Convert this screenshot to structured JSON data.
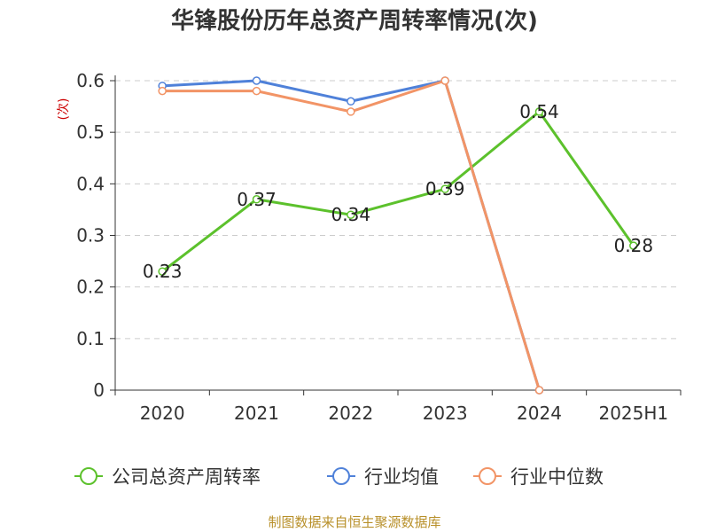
{
  "chart_data": {
    "type": "line",
    "title": "华锋股份历年总资产周转率情况(次)",
    "ylabel": "(次)",
    "xlabel": "",
    "categories": [
      "2020",
      "2021",
      "2022",
      "2023",
      "2024",
      "2025H1"
    ],
    "ylim": [
      0,
      0.6
    ],
    "yticks": [
      0,
      0.1,
      0.2,
      0.3,
      0.4,
      0.5,
      0.6
    ],
    "ytick_labels": [
      "0",
      "0.1",
      "0.2",
      "0.3",
      "0.4",
      "0.5",
      "0.6"
    ],
    "grid": true,
    "legend_position": "bottom",
    "series": [
      {
        "name": "公司总资产周转率",
        "color": "#5cc12c",
        "values": [
          0.23,
          0.37,
          0.34,
          0.39,
          0.54,
          0.28
        ],
        "labels": [
          "0.23",
          "0.37",
          "0.34",
          "0.39",
          "0.54",
          "0.28"
        ]
      },
      {
        "name": "行业均值",
        "color": "#4f81d9",
        "values": [
          0.59,
          0.6,
          0.56,
          0.6,
          0.0,
          null
        ]
      },
      {
        "name": "行业中位数",
        "color": "#f29466",
        "values": [
          0.58,
          0.58,
          0.54,
          0.6,
          0.0,
          null
        ]
      }
    ]
  },
  "source": "制图数据来自恒生聚源数据库"
}
